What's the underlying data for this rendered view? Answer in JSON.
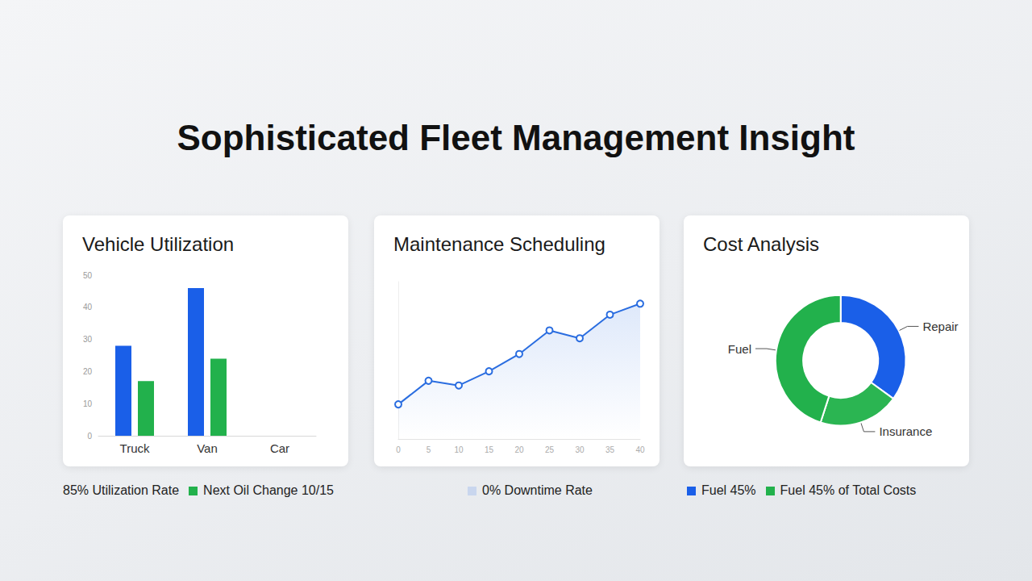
{
  "title": "Sophisticated Fleet Management Insight",
  "chart_data": [
    {
      "type": "bar",
      "title": "Vehicle Utilization",
      "categories": [
        "Truck",
        "Van",
        "Car"
      ],
      "series": [
        {
          "color": "#1a5fe8",
          "values": [
            28,
            46,
            null
          ]
        },
        {
          "color": "#22b14c",
          "values": [
            17,
            24,
            null
          ]
        }
      ],
      "ylim": [
        0,
        50
      ],
      "yticks": [
        0,
        10,
        20,
        30,
        40,
        50
      ],
      "grid": false,
      "annotations": [
        {
          "text": "85% Utilization Rate"
        },
        {
          "text": "Next Oil Change 10/15",
          "color": "#22b14c"
        }
      ]
    },
    {
      "type": "line",
      "title": "Maintenance Scheduling",
      "x": [
        0,
        5,
        10,
        15,
        20,
        25,
        30,
        35,
        40
      ],
      "values": [
        22,
        37,
        34,
        43,
        54,
        69,
        64,
        79,
        86
      ],
      "color": "#2a6de0",
      "marker": "circle",
      "xlim": [
        0,
        40
      ],
      "xticks": [
        0,
        5,
        10,
        15,
        20,
        25,
        30,
        35,
        40
      ],
      "ylim": [
        0,
        100
      ],
      "tick_labels": "x",
      "grid": false,
      "annotations": [
        {
          "text": "0% Downtime Rate",
          "color": "#c9d6ee"
        }
      ]
    },
    {
      "type": "pie",
      "title": "Cost Analysis",
      "categories": [
        "Repair",
        "Insurance",
        "Fuel"
      ],
      "values": [
        35,
        20,
        45
      ],
      "colors": [
        "#1a5fe8",
        "#2bb552",
        "#22b14c"
      ],
      "annotations": [
        {
          "text": "Fuel 45%",
          "color": "#1a5fe8"
        },
        {
          "text": "Fuel 45% of Total Costs",
          "color": "#22b14c"
        }
      ]
    }
  ]
}
